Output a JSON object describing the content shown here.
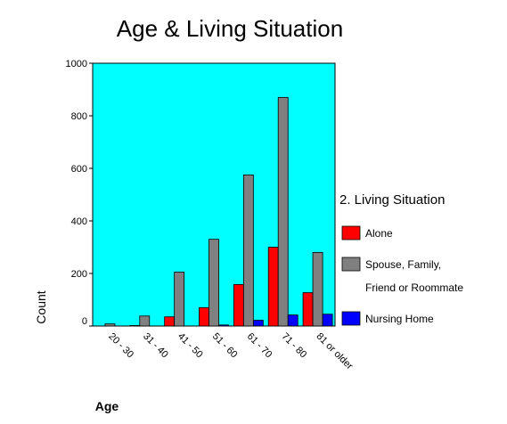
{
  "chart_data": {
    "type": "bar",
    "title": "Age & Living Situation",
    "xlabel": "Age",
    "ylabel": "Count",
    "ylim": [
      0,
      1000
    ],
    "yticks": [
      0,
      200,
      400,
      600,
      800,
      1000
    ],
    "categories": [
      "20 - 30",
      "31 - 40",
      "41 - 50",
      "51 - 60",
      "61 - 70",
      "71 - 80",
      "81 or older"
    ],
    "legend_title": "2. Living Situation",
    "legend_position": "right",
    "plot_background": "#00FFFF",
    "series": [
      {
        "name": "Alone",
        "color": "#FF0000",
        "values": [
          0,
          2,
          35,
          70,
          158,
          300,
          127
        ]
      },
      {
        "name": "Spouse, Family, Friend or Roommate",
        "name_lines": [
          "Spouse, Family,",
          "Friend or Roommate"
        ],
        "color": "#808080",
        "values": [
          8,
          38,
          205,
          330,
          575,
          870,
          280
        ]
      },
      {
        "name": "Nursing Home",
        "color": "#0000FF",
        "values": [
          0,
          0,
          0,
          4,
          22,
          42,
          45
        ]
      }
    ]
  }
}
